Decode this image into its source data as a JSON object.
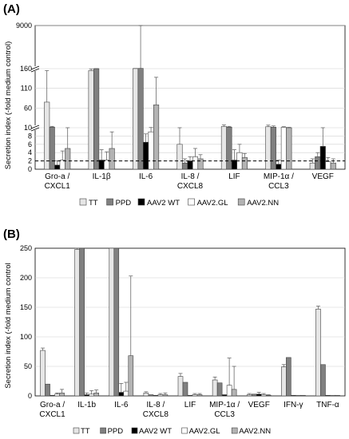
{
  "figure": {
    "legend": [
      {
        "label": "TT",
        "color": "#e6e6e6"
      },
      {
        "label": "PPD",
        "color": "#808080"
      },
      {
        "label": "AAV2 WT",
        "color": "#000000"
      },
      {
        "label": "AAV2.GL",
        "color": "#ffffff"
      },
      {
        "label": "AAV2.NN",
        "color": "#b3b3b3"
      }
    ]
  },
  "chart_data": [
    {
      "panel_label": "(A)",
      "type": "bar",
      "ylabel": "Secretion index (-fold medium control)",
      "yaxis_scale": "broken",
      "y_ticks": [
        "0",
        "2",
        "4",
        "6",
        "8",
        "10",
        "60",
        "110",
        "160",
        "9000"
      ],
      "reference_line": 2,
      "categories": [
        [
          "Gro-a /",
          "CXCL1"
        ],
        [
          "IL-1β"
        ],
        [
          "IL-6"
        ],
        [
          "IL-8 /",
          "CXCL8"
        ],
        [
          "LIF"
        ],
        [
          "MIP-1α /",
          "CCL3"
        ],
        [
          "VEGF"
        ]
      ],
      "series": [
        {
          "name": "TT",
          "color": "#e6e6e6",
          "values": [
            75,
            155,
            178,
            6,
            13,
            12.5,
            1.5
          ],
          "errors": [
            80,
            4,
            30,
            4,
            4,
            4,
            1
          ]
        },
        {
          "name": "PPD",
          "color": "#808080",
          "values": [
            11.5,
            165,
            215,
            1.5,
            11.5,
            11.5,
            3
          ],
          "errors": [
            2,
            12,
            8800,
            1,
            2,
            3,
            1
          ]
        },
        {
          "name": "AAV2 WT",
          "color": "#000000",
          "values": [
            1,
            2.2,
            6.5,
            2,
            2.2,
            1.2,
            5.5
          ],
          "errors": [
            1,
            2.5,
            2,
            1,
            2.5,
            1,
            4.5
          ]
        },
        {
          "name": "AAV2.GL",
          "color": "#ffffff",
          "values": [
            2.2,
            2.2,
            9,
            3,
            4,
            11,
            1.8
          ],
          "errors": [
            2.2,
            2,
            1.5,
            2,
            2,
            1.5,
            1
          ]
        },
        {
          "name": "AAV2.NN",
          "color": "#b3b3b3",
          "values": [
            5,
            5,
            68,
            2.5,
            2.8,
            10,
            1.5
          ],
          "errors": [
            5,
            4,
            70,
            1,
            1,
            1,
            1
          ]
        }
      ]
    },
    {
      "panel_label": "(B)",
      "type": "bar",
      "ylabel": "Secretion index (-fold medium control",
      "ylim": [
        0,
        250
      ],
      "y_ticks": [
        "0",
        "50",
        "100",
        "150",
        "200",
        "250"
      ],
      "categories": [
        [
          "Gro-a /",
          "CXCL1"
        ],
        [
          "IL-1b"
        ],
        [
          "IL-6"
        ],
        [
          "IL-8 /",
          "CXCL8"
        ],
        [
          "LIF"
        ],
        [
          "MIP-1α /",
          "CCL3"
        ],
        [
          "VEGF"
        ],
        [
          "IFN-γ"
        ],
        [
          "TNF-α"
        ]
      ],
      "series": [
        {
          "name": "TT",
          "color": "#e6e6e6",
          "values": [
            77,
            248,
            258,
            5,
            33,
            27,
            2,
            49,
            147
          ],
          "errors": [
            4,
            3,
            0,
            2,
            5,
            5,
            2,
            4,
            5
          ]
        },
        {
          "name": "PPD",
          "color": "#808080",
          "values": [
            20,
            258,
            258,
            2,
            23,
            22,
            3,
            65,
            53
          ],
          "errors": [
            0,
            0,
            0,
            0,
            0,
            0,
            0,
            0,
            0
          ]
        },
        {
          "name": "AAV2 WT",
          "color": "#000000",
          "values": [
            1,
            2,
            6,
            1,
            1,
            2,
            3,
            1,
            1
          ],
          "errors": [
            0,
            3,
            15,
            0,
            0,
            0,
            3,
            0,
            0
          ]
        },
        {
          "name": "AAV2.GL",
          "color": "#ffffff",
          "values": [
            3,
            3,
            8,
            2,
            2,
            18,
            2,
            1,
            1
          ],
          "errors": [
            2,
            6,
            15,
            2,
            2,
            46,
            2,
            0,
            0
          ]
        },
        {
          "name": "AAV2.NN",
          "color": "#b3b3b3",
          "values": [
            5,
            5,
            68,
            2,
            2,
            11,
            1,
            1,
            1
          ],
          "errors": [
            6,
            5,
            135,
            3,
            2,
            39,
            1,
            0,
            0
          ]
        }
      ]
    }
  ]
}
